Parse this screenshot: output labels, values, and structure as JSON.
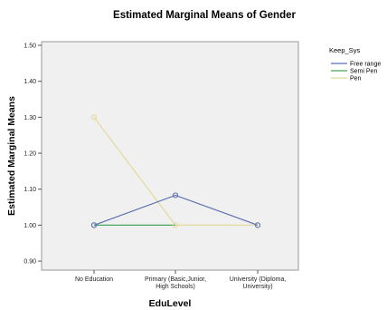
{
  "chart_data": {
    "type": "line",
    "title": "Estimated Marginal Means of Gender",
    "xlabel": "EduLevel",
    "ylabel": "Estimated Marginal Means",
    "categories": [
      [
        "No Education"
      ],
      [
        "Primary (Basic,Junior,",
        "High Schools)"
      ],
      [
        "University (Diploma,",
        "University)"
      ]
    ],
    "ylim": [
      0.875,
      1.51
    ],
    "yticks": [
      "0.90",
      "1.00",
      "1.10",
      "1.20",
      "1.30",
      "1.40",
      "1.50"
    ],
    "ytick_values": [
      0.9,
      1.0,
      1.1,
      1.2,
      1.3,
      1.4,
      1.5
    ],
    "legend_title": "Keep_Sys",
    "legend_position": "top-right",
    "grid": false,
    "series": [
      {
        "name": "Free range",
        "color": "#5c6fb0",
        "values": [
          1.0,
          1.083,
          1.0
        ]
      },
      {
        "name": "Semi Pen",
        "color": "#4aa85a",
        "values": [
          1.0,
          null,
          null
        ]
      },
      {
        "name": "Pen",
        "color": "#e4d99c",
        "values": [
          1.3,
          1.0,
          1.0
        ]
      }
    ],
    "plot_background": "#f0f0f0"
  }
}
